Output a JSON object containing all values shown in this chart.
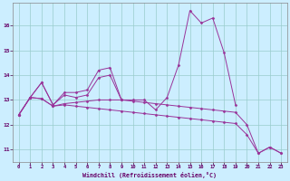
{
  "xlabel": "Windchill (Refroidissement éolien,°C)",
  "background_color": "#cceeff",
  "line_color": "#993399",
  "grid_color": "#99cccc",
  "x_ticks": [
    0,
    1,
    2,
    3,
    4,
    5,
    6,
    7,
    8,
    9,
    10,
    11,
    12,
    13,
    14,
    15,
    16,
    17,
    18,
    19,
    20,
    21,
    22,
    23
  ],
  "y_ticks": [
    11,
    12,
    13,
    14,
    15,
    16
  ],
  "ylim": [
    10.5,
    16.9
  ],
  "xlim": [
    -0.5,
    23.5
  ],
  "series1": [
    12.4,
    13.1,
    13.7,
    12.8,
    13.2,
    13.1,
    13.2,
    13.9,
    14.0,
    13.0,
    13.0,
    13.0,
    12.6,
    13.1,
    14.4,
    16.6,
    16.1,
    16.3,
    14.9,
    12.8,
    null,
    null,
    null,
    null
  ],
  "series2": [
    12.4,
    13.1,
    13.7,
    12.8,
    13.3,
    13.3,
    13.4,
    14.2,
    14.3,
    13.0,
    null,
    null,
    null,
    null,
    null,
    null,
    null,
    null,
    null,
    null,
    null,
    null,
    null,
    null
  ],
  "series3": [
    12.4,
    13.1,
    13.05,
    12.75,
    12.85,
    12.9,
    12.95,
    13.0,
    13.0,
    13.0,
    12.95,
    12.9,
    12.85,
    12.8,
    12.75,
    12.7,
    12.65,
    12.6,
    12.55,
    12.5,
    12.0,
    10.85,
    11.1,
    10.85
  ],
  "series4": [
    12.4,
    13.1,
    13.05,
    12.75,
    12.8,
    12.75,
    12.7,
    12.65,
    12.6,
    12.55,
    12.5,
    12.45,
    12.4,
    12.35,
    12.3,
    12.25,
    12.2,
    12.15,
    12.1,
    12.05,
    11.6,
    10.85,
    11.1,
    10.85
  ]
}
